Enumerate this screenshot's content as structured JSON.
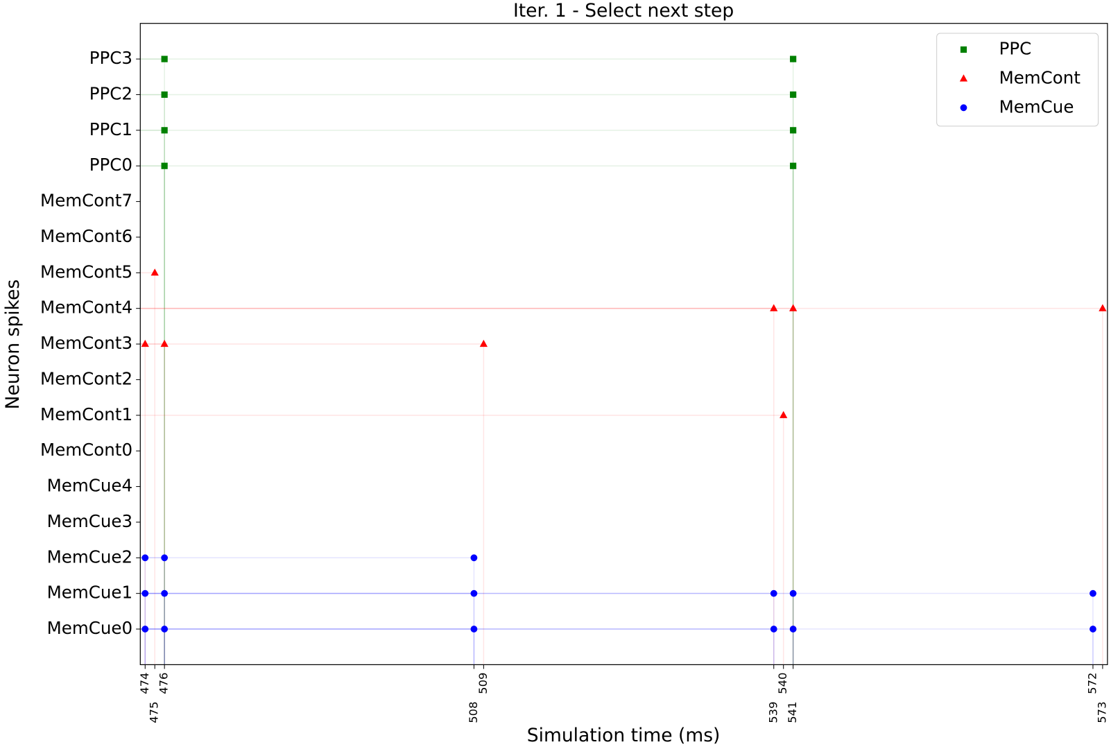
{
  "chart_data": {
    "type": "scatter",
    "title": "Iter. 1 - Select next step",
    "x_label": "Simulation time (ms)",
    "y_label": "Neuron spikes",
    "categories": [
      "MemCue0",
      "MemCue1",
      "MemCue2",
      "MemCue3",
      "MemCue4",
      "MemCont0",
      "MemCont1",
      "MemCont2",
      "MemCont3",
      "MemCont4",
      "MemCont5",
      "MemCont6",
      "MemCont7",
      "PPC0",
      "PPC1",
      "PPC2",
      "PPC3"
    ],
    "xlim": [
      473.5,
      573.5
    ],
    "xticks": [
      474,
      475,
      476,
      508,
      509,
      539,
      540,
      541,
      572,
      573
    ],
    "ylim": [
      -1,
      17
    ],
    "legend": "upper right",
    "grid": false,
    "series": [
      {
        "name": "PPC",
        "color": "#008000",
        "marker": "square",
        "x": [
          476,
          476,
          476,
          476,
          541,
          541,
          541,
          541
        ],
        "y": [
          "PPC3",
          "PPC2",
          "PPC1",
          "PPC0",
          "PPC3",
          "PPC2",
          "PPC1",
          "PPC0"
        ]
      },
      {
        "name": "MemCont",
        "color": "#ff0000",
        "marker": "triangle",
        "x": [
          475,
          474,
          476,
          509,
          539,
          541,
          573,
          540
        ],
        "y": [
          "MemCont5",
          "MemCont3",
          "MemCont3",
          "MemCont3",
          "MemCont4",
          "MemCont4",
          "MemCont4",
          "MemCont1"
        ]
      },
      {
        "name": "MemCue",
        "color": "#0000ff",
        "marker": "circle",
        "x": [
          474,
          476,
          508,
          474,
          476,
          508,
          539,
          541,
          572,
          474,
          476,
          508,
          539,
          541,
          572
        ],
        "y": [
          "MemCue2",
          "MemCue2",
          "MemCue2",
          "MemCue1",
          "MemCue1",
          "MemCue1",
          "MemCue1",
          "MemCue1",
          "MemCue1",
          "MemCue0",
          "MemCue0",
          "MemCue0",
          "MemCue0",
          "MemCue0",
          "MemCue0"
        ]
      }
    ]
  }
}
